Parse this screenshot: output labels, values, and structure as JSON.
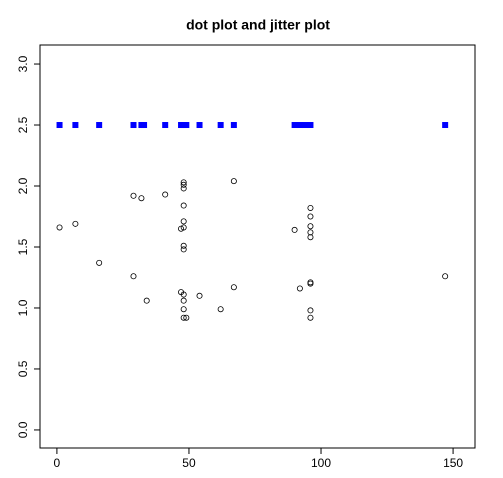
{
  "chart_data": {
    "type": "scatter",
    "title": "dot plot and jitter plot",
    "xlim": [
      -6.4,
      158.3
    ],
    "ylim": [
      -0.148,
      3.156
    ],
    "xticks": [
      0,
      50,
      100,
      150
    ],
    "yticks": [
      {
        "value": 0,
        "label": "0.0"
      },
      {
        "value": 0.5,
        "label": "0.5"
      },
      {
        "value": 1,
        "label": "1.0"
      },
      {
        "value": 1.5,
        "label": "1.5"
      },
      {
        "value": 2,
        "label": "2.0"
      },
      {
        "value": 2.5,
        "label": "2.5"
      },
      {
        "value": 3,
        "label": "3.0"
      }
    ],
    "series": [
      {
        "marker": "square",
        "color": "#0000ff",
        "x": [
          1,
          7,
          16,
          29,
          32,
          33,
          41,
          47,
          48,
          49,
          54,
          62,
          67,
          90,
          92,
          94,
          96,
          147
        ],
        "y": [
          2.5,
          2.5,
          2.5,
          2.5,
          2.5,
          2.5,
          2.5,
          2.5,
          2.5,
          2.5,
          2.5,
          2.5,
          2.5,
          2.5,
          2.5,
          2.5,
          2.5,
          2.5
        ]
      },
      {
        "marker": "circle",
        "color": "#000000",
        "x": [
          1,
          7,
          16,
          29,
          32,
          29,
          34,
          41,
          48,
          48,
          48,
          48,
          48,
          48,
          47,
          48,
          48,
          47,
          48,
          48,
          48,
          48,
          49,
          54,
          62,
          67,
          67,
          90,
          92,
          96,
          96,
          96,
          96,
          96,
          96,
          96,
          96,
          96,
          147
        ],
        "y": [
          1.66,
          1.69,
          1.37,
          1.92,
          1.9,
          1.26,
          1.06,
          1.93,
          2.03,
          2.01,
          1.98,
          1.84,
          1.71,
          1.66,
          1.65,
          1.51,
          1.48,
          1.13,
          1.11,
          1.06,
          0.99,
          0.92,
          0.92,
          1.1,
          0.99,
          2.04,
          1.17,
          1.64,
          1.16,
          1.82,
          1.75,
          1.67,
          1.62,
          1.58,
          1.2,
          1.21,
          0.98,
          0.92,
          1.26
        ]
      }
    ]
  }
}
